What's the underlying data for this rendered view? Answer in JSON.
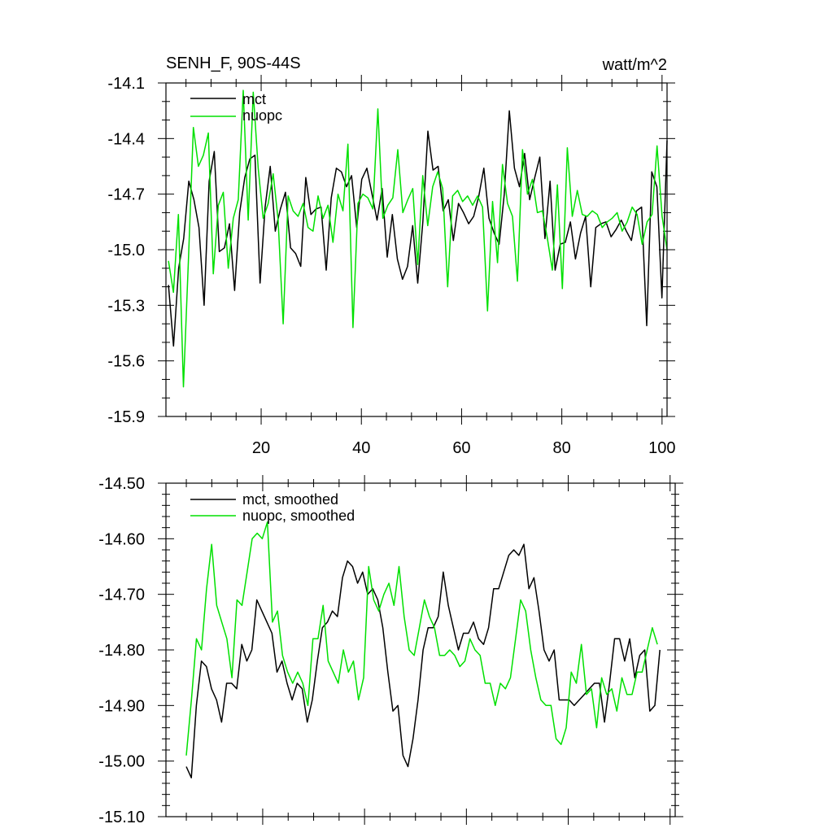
{
  "chart_data": [
    {
      "type": "line",
      "title": "SENH_F, 90S-44S",
      "units": "watt/m^2",
      "ylim": [
        -15.9,
        -14.1
      ],
      "xlim": [
        1,
        101
      ],
      "yticks": [
        "-14.1",
        "-14.4",
        "-14.7",
        "-15.0",
        "-15.3",
        "-15.6",
        "-15.9"
      ],
      "xticks": [
        "20",
        "40",
        "60",
        "80",
        "100"
      ],
      "legend_position": "top-left",
      "series": [
        {
          "name": "mct",
          "color": "#000000",
          "x_start": 1,
          "values": [
            -15.19,
            -15.52,
            -15.1,
            -14.94,
            -14.63,
            -14.73,
            -14.88,
            -15.3,
            -14.63,
            -14.47,
            -15.01,
            -14.99,
            -14.86,
            -15.22,
            -14.8,
            -14.61,
            -14.51,
            -14.49,
            -15.18,
            -14.77,
            -14.55,
            -14.9,
            -14.78,
            -14.69,
            -14.99,
            -15.02,
            -15.09,
            -14.61,
            -14.81,
            -14.78,
            -14.77,
            -15.11,
            -14.72,
            -14.56,
            -14.58,
            -14.66,
            -14.6,
            -14.88,
            -14.62,
            -14.56,
            -14.7,
            -14.84,
            -14.67,
            -15.04,
            -14.81,
            -15.05,
            -15.16,
            -15.09,
            -14.87,
            -15.18,
            -14.85,
            -14.36,
            -14.57,
            -14.55,
            -14.79,
            -14.73,
            -14.95,
            -14.75,
            -14.8,
            -14.86,
            -14.82,
            -14.71,
            -14.56,
            -14.83,
            -14.91,
            -14.97,
            -14.7,
            -14.25,
            -14.56,
            -14.66,
            -14.48,
            -14.73,
            -14.61,
            -14.5,
            -14.94,
            -14.63,
            -15.11,
            -14.97,
            -14.96,
            -14.85,
            -15.05,
            -14.91,
            -14.82,
            -15.2,
            -14.88,
            -14.86,
            -14.85,
            -14.93,
            -14.89,
            -14.84,
            -14.9,
            -14.95,
            -14.79,
            -14.77,
            -15.41,
            -14.58,
            -14.66,
            -15.26,
            -14.41
          ],
          "x_range": [
            1.5,
            101
          ]
        },
        {
          "name": "nuopc",
          "color": "#00e000",
          "values": [
            -15.06,
            -15.23,
            -14.81,
            -15.74,
            -15.06,
            -14.34,
            -14.55,
            -14.49,
            -14.37,
            -15.13,
            -14.76,
            -14.69,
            -15.1,
            -14.83,
            -14.73,
            -14.14,
            -14.84,
            -14.15,
            -14.56,
            -14.83,
            -14.75,
            -14.59,
            -14.84,
            -15.4,
            -14.71,
            -14.79,
            -14.82,
            -14.75,
            -14.88,
            -14.9,
            -14.71,
            -14.83,
            -14.76,
            -14.96,
            -14.7,
            -14.79,
            -14.43,
            -15.42,
            -14.75,
            -14.7,
            -14.72,
            -14.78,
            -14.24,
            -14.83,
            -14.76,
            -14.72,
            -14.46,
            -14.8,
            -14.73,
            -14.67,
            -15.08,
            -14.6,
            -14.87,
            -14.66,
            -14.58,
            -14.67,
            -15.2,
            -14.71,
            -14.68,
            -14.74,
            -14.71,
            -14.76,
            -14.71,
            -14.77,
            -15.33,
            -14.74,
            -15.07,
            -14.54,
            -14.75,
            -14.82,
            -15.17,
            -14.46,
            -14.7,
            -14.62,
            -14.8,
            -14.79,
            -14.94,
            -15.11,
            -14.65,
            -15.21,
            -14.45,
            -14.82,
            -14.68,
            -14.81,
            -14.82,
            -14.79,
            -14.81,
            -14.88,
            -14.85,
            -14.83,
            -14.8,
            -14.9,
            -14.85,
            -14.77,
            -14.81,
            -14.97,
            -14.85,
            -14.81,
            -14.44,
            -14.82,
            -15.0
          ],
          "x_range": [
            1.5,
            101
          ]
        }
      ]
    },
    {
      "type": "line",
      "ylim": [
        -15.1,
        -14.5
      ],
      "xlim": [
        1,
        101
      ],
      "yticks": [
        "-14.50",
        "-14.60",
        "-14.70",
        "-14.80",
        "-14.90",
        "-15.00",
        "-15.10"
      ],
      "legend_position": "top-left",
      "series": [
        {
          "name": "mct, smoothed",
          "color": "#000000",
          "values": [
            -15.01,
            -15.03,
            -14.9,
            -14.82,
            -14.83,
            -14.87,
            -14.89,
            -14.93,
            -14.86,
            -14.86,
            -14.87,
            -14.79,
            -14.82,
            -14.8,
            -14.71,
            -14.73,
            -14.75,
            -14.77,
            -14.84,
            -14.82,
            -14.86,
            -14.89,
            -14.86,
            -14.87,
            -14.93,
            -14.89,
            -14.82,
            -14.76,
            -14.75,
            -14.73,
            -14.74,
            -14.67,
            -14.64,
            -14.65,
            -14.68,
            -14.66,
            -14.7,
            -14.69,
            -14.71,
            -14.76,
            -14.84,
            -14.91,
            -14.9,
            -14.99,
            -15.01,
            -14.96,
            -14.89,
            -14.8,
            -14.76,
            -14.76,
            -14.74,
            -14.66,
            -14.72,
            -14.76,
            -14.8,
            -14.77,
            -14.77,
            -14.75,
            -14.78,
            -14.79,
            -14.76,
            -14.69,
            -14.69,
            -14.66,
            -14.63,
            -14.62,
            -14.63,
            -14.61,
            -14.69,
            -14.67,
            -14.73,
            -14.8,
            -14.82,
            -14.8,
            -14.89,
            -14.89,
            -14.89,
            -14.9,
            -14.89,
            -14.88,
            -14.87,
            -14.86,
            -14.86,
            -14.93,
            -14.86,
            -14.78,
            -14.78,
            -14.82,
            -14.78,
            -14.85,
            -14.81,
            -14.8,
            -14.91,
            -14.9,
            -14.8
          ],
          "x_range": [
            5,
            98
          ]
        },
        {
          "name": "nuopc, smoothed",
          "color": "#00e000",
          "values": [
            -14.99,
            -14.89,
            -14.78,
            -14.8,
            -14.69,
            -14.61,
            -14.72,
            -14.75,
            -14.78,
            -14.85,
            -14.71,
            -14.72,
            -14.66,
            -14.6,
            -14.59,
            -14.6,
            -14.57,
            -14.75,
            -14.73,
            -14.81,
            -14.84,
            -14.86,
            -14.84,
            -14.86,
            -14.9,
            -14.78,
            -14.78,
            -14.72,
            -14.82,
            -14.84,
            -14.86,
            -14.8,
            -14.84,
            -14.82,
            -14.89,
            -14.85,
            -14.65,
            -14.71,
            -14.73,
            -14.7,
            -14.68,
            -14.72,
            -14.65,
            -14.74,
            -14.8,
            -14.81,
            -14.76,
            -14.71,
            -14.74,
            -14.76,
            -14.81,
            -14.81,
            -14.8,
            -14.81,
            -14.83,
            -14.82,
            -14.78,
            -14.8,
            -14.81,
            -14.86,
            -14.86,
            -14.9,
            -14.86,
            -14.87,
            -14.85,
            -14.78,
            -14.71,
            -14.73,
            -14.8,
            -14.85,
            -14.89,
            -14.9,
            -14.9,
            -14.96,
            -14.97,
            -14.94,
            -14.84,
            -14.86,
            -14.79,
            -14.88,
            -14.87,
            -14.94,
            -14.85,
            -14.88,
            -14.87,
            -14.91,
            -14.85,
            -14.88,
            -14.88,
            -14.84,
            -14.84,
            -14.8,
            -14.76,
            -14.79
          ],
          "x_range": [
            5,
            97.5
          ]
        }
      ]
    }
  ]
}
